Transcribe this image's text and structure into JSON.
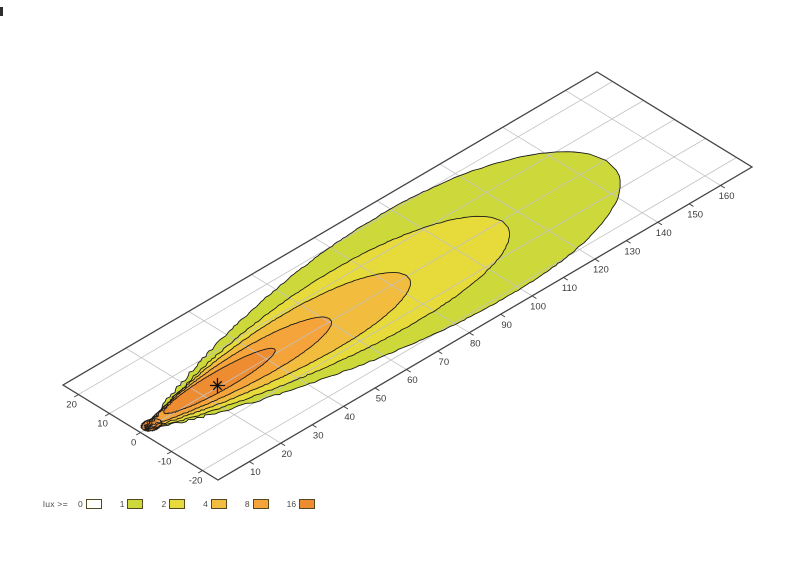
{
  "chart_data": {
    "type": "heatmap",
    "subtype": "filled-isolux-contour-perspective",
    "title": "",
    "legend": {
      "label": "lux >=",
      "levels": [
        {
          "value": "0",
          "color": "#ffffff"
        },
        {
          "value": "1",
          "color": "#cdd93a"
        },
        {
          "value": "2",
          "color": "#e7da3b"
        },
        {
          "value": "4",
          "color": "#f2bc3f"
        },
        {
          "value": "8",
          "color": "#f5a43c"
        },
        {
          "value": "16",
          "color": "#ee8c31"
        }
      ]
    },
    "distance_axis": {
      "range": [
        0,
        170
      ],
      "ticks": [
        10,
        20,
        30,
        40,
        50,
        60,
        70,
        80,
        90,
        100,
        110,
        120,
        130,
        140,
        150,
        160
      ],
      "gridline_step": 20,
      "unit": "m"
    },
    "lateral_axis": {
      "range": [
        -25,
        25
      ],
      "ticks": [
        20,
        10,
        0,
        -10,
        -20
      ],
      "gridline_step": 10,
      "unit": "m"
    },
    "grid": {
      "line_color": "#c2c2c2",
      "border_color": "#444444"
    },
    "max_intensity_marker": {
      "symbol": "asterisk",
      "distance": 25,
      "lateral": 0.5
    },
    "contours": [
      {
        "level": 1,
        "color": "#cdd93a",
        "d_tail": 1.5,
        "d_tip": 148,
        "max_half_width": 21.0,
        "center_l": -0.3,
        "shape_a": 0.93,
        "shape_b": 0.5,
        "jag": 0.85
      },
      {
        "level": 2,
        "color": "#e7da3b",
        "d_tail": 1.8,
        "d_tip": 115,
        "max_half_width": 13.5,
        "center_l": -0.2,
        "shape_a": 0.9,
        "shape_b": 0.5,
        "jag": 0.7
      },
      {
        "level": 4,
        "color": "#f2bc3f",
        "d_tail": 2.0,
        "d_tip": 85,
        "max_half_width": 8.8,
        "center_l": 0.4,
        "shape_a": 0.88,
        "shape_b": 0.5,
        "jag": 0.5
      },
      {
        "level": 8,
        "color": "#f5a43c",
        "d_tail": 2.2,
        "d_tip": 61,
        "max_half_width": 5.4,
        "center_l": 0.9,
        "shape_a": 0.85,
        "shape_b": 0.5,
        "jag": 0.4
      },
      {
        "level": 16,
        "color": "#ee8c31",
        "d_tail": 9.0,
        "d_tip": 44,
        "max_half_width": 3.1,
        "center_l": 1.4,
        "shape_a": 0.55,
        "shape_b": 0.5,
        "jag": 0.3
      },
      {
        "level": 16,
        "color": "#ee8c31",
        "d_tail": 1.2,
        "d_tip": 6.5,
        "max_half_width": 1.9,
        "center_l": 0.3,
        "shape_a": 0.5,
        "shape_b": 0.5,
        "jag": 0.3
      }
    ]
  }
}
